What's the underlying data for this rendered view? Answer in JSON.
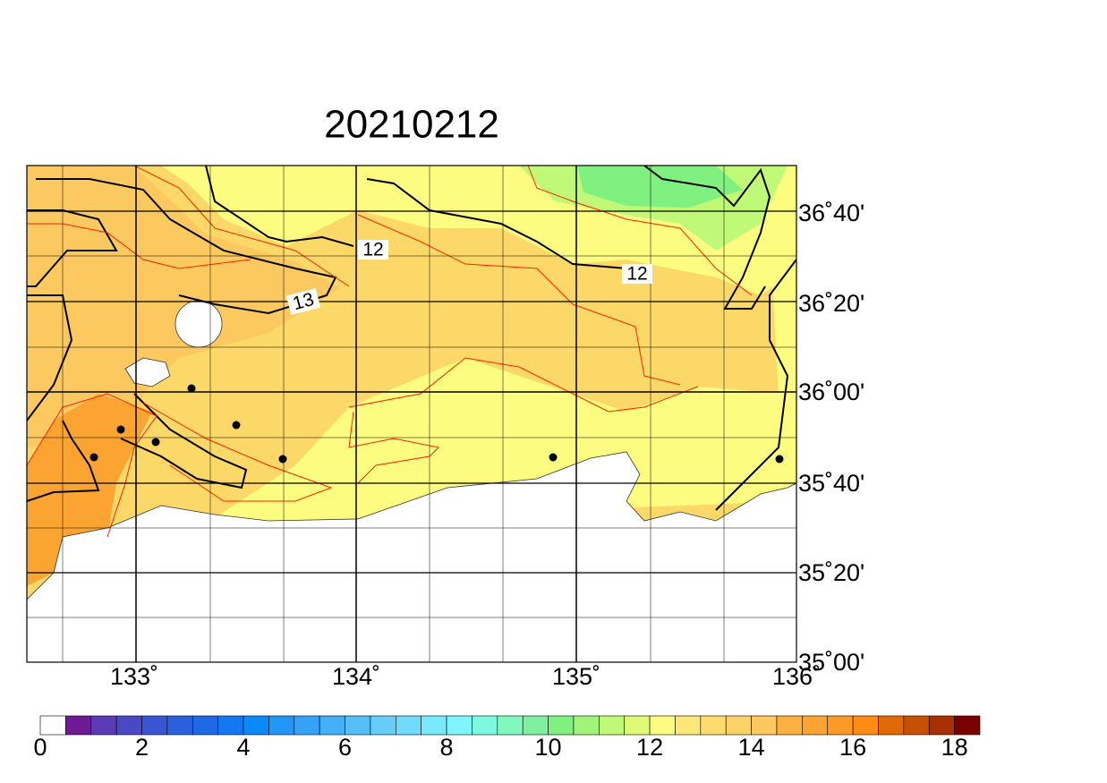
{
  "title": "20210212",
  "map": {
    "x_labels": [
      "133˚",
      "134˚",
      "135˚",
      "136˚"
    ],
    "y_labels": [
      "36˚40'",
      "36˚20'",
      "36˚00'",
      "35˚40'",
      "35˚20'",
      "35˚00'"
    ],
    "contour_labels": [
      "12",
      "13",
      "12"
    ]
  },
  "colorbar": {
    "labels": [
      0,
      2,
      4,
      6,
      8,
      10,
      12,
      14,
      16,
      18
    ],
    "colors": [
      "#ffffff",
      "#6e1a94",
      "#5a3bb5",
      "#4b48c4",
      "#3a55d2",
      "#2c5fdc",
      "#2069e6",
      "#1478f0",
      "#0a8af8",
      "#2196f6",
      "#35a2f5",
      "#45b0f5",
      "#55bef6",
      "#65cdf8",
      "#72dafa",
      "#7ae8fd",
      "#80f5fc",
      "#80f8e0",
      "#80f8c0",
      "#80f0a0",
      "#80f080",
      "#a0f47a",
      "#c0f878",
      "#e0fa78",
      "#fcfc80",
      "#fce878",
      "#fcdc6c",
      "#fcd268",
      "#fcc860",
      "#fcb040",
      "#fca432",
      "#fc9a28",
      "#fc8c14",
      "#e06a0a",
      "#c85004",
      "#a83000",
      "#7a0000"
    ]
  }
}
